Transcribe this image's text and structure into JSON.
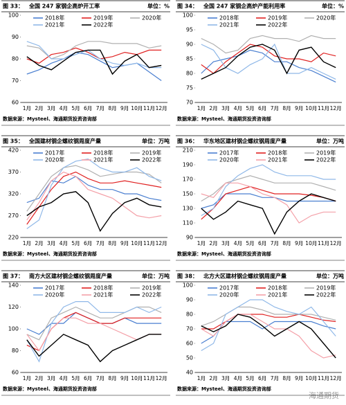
{
  "watermark": "海通期货",
  "chart_data": [
    {
      "type": "line",
      "figure_label": "图 33：",
      "title": "全国 247 家钢企高炉开工率",
      "unit": "单位：%",
      "source": "数据来源：Mysteel、海通期货投资咨询部",
      "categories": [
        "1月",
        "2月",
        "3月",
        "4月",
        "5月",
        "6月",
        "7月",
        "8月",
        "9月",
        "10月",
        "11月",
        "12月"
      ],
      "ylim": [
        60,
        100
      ],
      "yticks": [
        60,
        70,
        80,
        90,
        100
      ],
      "legend": "top",
      "series": [
        {
          "name": "2018年",
          "color": "#4a7fd0",
          "values": [
            73,
            75,
            78,
            80,
            83,
            82,
            79,
            76,
            77,
            78,
            74,
            70
          ]
        },
        {
          "name": "2019年",
          "color": "#e02020",
          "values": [
            80,
            78,
            82,
            83,
            85,
            83,
            80,
            81,
            83,
            82,
            84,
            84
          ]
        },
        {
          "name": "2020年",
          "color": "#b0b0b0",
          "values": [
            86,
            85,
            80,
            82,
            86,
            88,
            88,
            87,
            87,
            87,
            85,
            86
          ]
        },
        {
          "name": "2021年",
          "color": "#8fb8e8",
          "values": [
            88,
            86,
            80,
            80,
            82,
            84,
            80,
            78,
            77,
            78,
            76,
            76
          ]
        },
        {
          "name": "2022年",
          "color": "#000000",
          "values": [
            81,
            77,
            75,
            79,
            83,
            84,
            84,
            73,
            79,
            82,
            76,
            77
          ]
        }
      ]
    },
    {
      "type": "line",
      "figure_label": "图 34：",
      "title": "全国 247 家钢企高炉产能利用率",
      "unit": "单位：%",
      "source": "数据来源：Mysteel、海通期货投资咨询部",
      "categories": [
        "1月",
        "2月",
        "3月",
        "4月",
        "5月",
        "6月",
        "7月",
        "8月",
        "9月",
        "10月",
        "11月",
        "12月"
      ],
      "ylim": [
        70,
        100
      ],
      "yticks": [
        70,
        75,
        80,
        85,
        90,
        95,
        100
      ],
      "legend": "top",
      "series": [
        {
          "name": "2018年",
          "color": "#4a7fd0",
          "values": [
            80,
            84,
            85,
            86,
            88,
            87,
            84,
            84,
            82,
            81,
            79,
            77
          ]
        },
        {
          "name": "2019年",
          "color": "#e02020",
          "values": [
            83,
            80,
            84,
            87,
            90,
            89,
            86,
            85,
            85,
            84,
            87,
            86
          ]
        },
        {
          "name": "2020年",
          "color": "#b0b0b0",
          "values": [
            92,
            90,
            87,
            88,
            92,
            93,
            92,
            92,
            91,
            93,
            92,
            92
          ]
        },
        {
          "name": "2021年",
          "color": "#8fb8e8",
          "values": [
            90,
            88,
            82,
            80,
            83,
            85,
            90,
            80,
            80,
            82,
            80,
            78
          ]
        },
        {
          "name": "2022年",
          "color": "#000000",
          "values": [
            78,
            80,
            82,
            86,
            89,
            90,
            88,
            80,
            88,
            89,
            84,
            82
          ]
        }
      ]
    },
    {
      "type": "line",
      "figure_label": "图 35：",
      "title": "全国建材钢企螺纹钢周度产量",
      "unit": "单位：万吨",
      "source": "数据来源：Mysteel、海通期货投资咨询部",
      "categories": [
        "1月",
        "2月",
        "3月",
        "4月",
        "5月",
        "6月",
        "7月",
        "8月",
        "9月",
        "10月",
        "11月",
        "12月"
      ],
      "ylim": [
        220,
        420
      ],
      "yticks": [
        220,
        270,
        320,
        370,
        420
      ],
      "legend": "top",
      "series": [
        {
          "name": "2017年",
          "color": "#4a7fd0",
          "values": [
            300,
            310,
            350,
            345,
            360,
            340,
            330,
            330,
            320,
            320,
            310,
            305
          ]
        },
        {
          "name": "2018年",
          "color": "#e02020",
          "values": [
            250,
            290,
            330,
            360,
            370,
            355,
            345,
            345,
            350,
            345,
            340,
            335
          ]
        },
        {
          "name": "2019年",
          "color": "#b0b0b0",
          "values": [
            280,
            320,
            360,
            380,
            385,
            375,
            360,
            365,
            370,
            370,
            365,
            345
          ]
        },
        {
          "name": "2020年",
          "color": "#8fb8e8",
          "values": [
            240,
            260,
            340,
            380,
            395,
            400,
            380,
            370,
            370,
            380,
            360,
            350
          ]
        },
        {
          "name": "2021年",
          "color": "#f4a0a8",
          "values": [
            260,
            300,
            350,
            370,
            360,
            330,
            320,
            310,
            290,
            270,
            265,
            270
          ]
        },
        {
          "name": "2022年",
          "color": "#000000",
          "values": [
            270,
            290,
            300,
            320,
            325,
            300,
            235,
            275,
            300,
            310,
            295,
            290
          ]
        }
      ]
    },
    {
      "type": "line",
      "figure_label": "图 36：",
      "title": "华东地区建材钢企螺纹钢周度产量",
      "unit": "单位：万吨",
      "source": "数据来源：Mysteel、海通期货投资咨询部",
      "categories": [
        "1月",
        "2月",
        "3月",
        "4月",
        "5月",
        "6月",
        "7月",
        "8月",
        "9月",
        "10月",
        "11月",
        "12月"
      ],
      "ylim": [
        90,
        210
      ],
      "yticks": [
        90,
        110,
        130,
        150,
        170,
        190,
        210
      ],
      "legend": "top",
      "series": [
        {
          "name": "2017年",
          "color": "#4a7fd0",
          "values": [
            130,
            135,
            150,
            150,
            150,
            145,
            145,
            140,
            140,
            140,
            140,
            140
          ]
        },
        {
          "name": "2018年",
          "color": "#e02020",
          "values": [
            115,
            130,
            150,
            155,
            160,
            155,
            150,
            150,
            150,
            148,
            145,
            140
          ]
        },
        {
          "name": "2019年",
          "color": "#b0b0b0",
          "values": [
            140,
            150,
            165,
            170,
            175,
            170,
            165,
            165,
            165,
            165,
            160,
            155
          ]
        },
        {
          "name": "2020年",
          "color": "#8fb8e8",
          "values": [
            120,
            130,
            160,
            175,
            185,
            190,
            180,
            175,
            175,
            175,
            170,
            170
          ]
        },
        {
          "name": "2021年",
          "color": "#f4a0a8",
          "values": [
            150,
            145,
            165,
            165,
            160,
            150,
            145,
            135,
            110,
            120,
            125,
            125
          ]
        },
        {
          "name": "2022年",
          "color": "#000000",
          "values": [
            130,
            115,
            125,
            140,
            135,
            130,
            95,
            125,
            140,
            150,
            145,
            140
          ]
        }
      ]
    },
    {
      "type": "line",
      "figure_label": "图 37：",
      "title": "南方大区建材钢企螺纹钢周度产量",
      "unit": "单位：万吨",
      "source": "数据来源：Mysteel、海通期货投资咨询部",
      "categories": [
        "1月",
        "2月",
        "3月",
        "4月",
        "5月",
        "6月",
        "7月",
        "8月",
        "9月",
        "10月",
        "11月",
        "12月"
      ],
      "ylim": [
        60,
        140
      ],
      "yticks": [
        60,
        80,
        100,
        120,
        140
      ],
      "legend": "top",
      "series": [
        {
          "name": "2017年",
          "color": "#4a7fd0",
          "values": [
            100,
            95,
            105,
            105,
            115,
            110,
            105,
            105,
            110,
            105,
            105,
            105
          ]
        },
        {
          "name": "2018年",
          "color": "#e02020",
          "values": [
            85,
            80,
            100,
            110,
            115,
            110,
            105,
            105,
            110,
            110,
            110,
            110
          ]
        },
        {
          "name": "2019年",
          "color": "#b0b0b0",
          "values": [
            95,
            90,
            110,
            115,
            120,
            115,
            110,
            110,
            115,
            120,
            120,
            115
          ]
        },
        {
          "name": "2020年",
          "color": "#8fb8e8",
          "values": [
            90,
            70,
            105,
            120,
            125,
            125,
            115,
            115,
            115,
            120,
            115,
            120
          ]
        },
        {
          "name": "2021年",
          "color": "#f4a0a8",
          "values": [
            95,
            80,
            100,
            110,
            110,
            105,
            105,
            100,
            95,
            90,
            95,
            95
          ]
        },
        {
          "name": "2022年",
          "color": "#000000",
          "values": [
            90,
            75,
            85,
            95,
            90,
            85,
            70,
            80,
            85,
            90,
            95,
            95
          ]
        }
      ]
    },
    {
      "type": "line",
      "figure_label": "图 38：",
      "title": "北方大区建材钢企螺纹钢周度产量",
      "unit": "单位：万吨",
      "source": "数据来源：Mysteel、海通期货投资咨询部",
      "categories": [
        "1月",
        "2月",
        "3月",
        "4月",
        "5月",
        "6月",
        "7月",
        "8月",
        "9月",
        "10月",
        "11月",
        "12月"
      ],
      "ylim": [
        40,
        100
      ],
      "yticks": [
        40,
        50,
        60,
        70,
        80,
        90,
        100
      ],
      "legend": "top",
      "series": [
        {
          "name": "2017年",
          "color": "#4a7fd0",
          "values": [
            60,
            65,
            75,
            75,
            75,
            70,
            75,
            75,
            75,
            75,
            72,
            70
          ]
        },
        {
          "name": "2018年",
          "color": "#e02020",
          "values": [
            70,
            70,
            75,
            80,
            80,
            80,
            78,
            78,
            80,
            78,
            76,
            75
          ]
        },
        {
          "name": "2019年",
          "color": "#b0b0b0",
          "values": [
            72,
            75,
            80,
            85,
            85,
            83,
            80,
            80,
            80,
            80,
            78,
            76
          ]
        },
        {
          "name": "2020年",
          "color": "#8fb8e8",
          "values": [
            55,
            60,
            80,
            85,
            90,
            90,
            85,
            82,
            80,
            85,
            75,
            65
          ]
        },
        {
          "name": "2021年",
          "color": "#f4a0a8",
          "values": [
            70,
            65,
            75,
            80,
            80,
            75,
            70,
            70,
            65,
            55,
            50,
            52
          ]
        },
        {
          "name": "2022年",
          "color": "#000000",
          "values": [
            72,
            68,
            72,
            80,
            78,
            72,
            65,
            70,
            75,
            70,
            60,
            50
          ]
        }
      ]
    }
  ]
}
